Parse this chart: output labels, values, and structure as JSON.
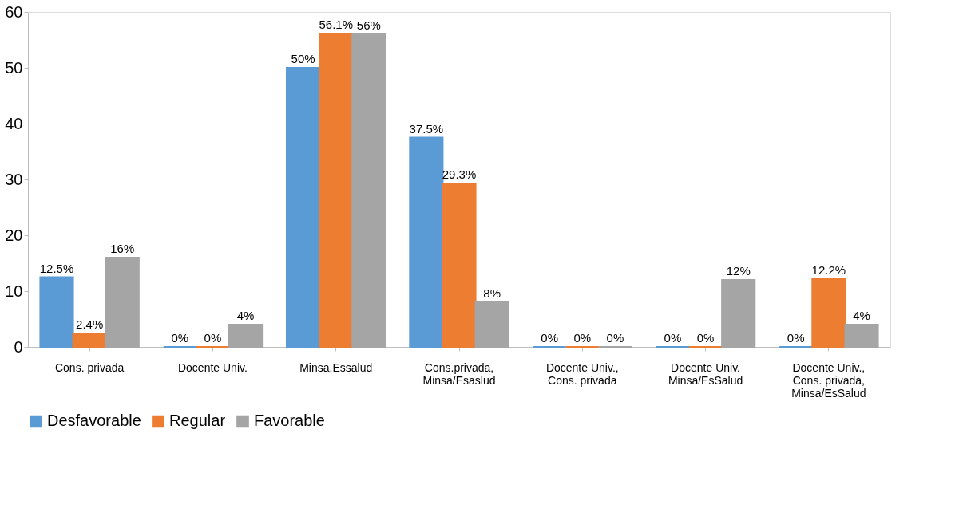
{
  "chart_data": {
    "type": "bar",
    "categories": [
      "Cons. privada",
      "Docente Univ.",
      "Minsa,Essalud",
      "Cons.privada,\nMinsa/Esaslud",
      "Docente Univ.,\nCons. privada",
      "Docente Univ.\nMinsa/EsSalud",
      "Docente Univ.,\nCons. privada,\nMinsa/EsSalud"
    ],
    "series": [
      {
        "name": "Desfavorable",
        "color": "#5b9bd5",
        "values": [
          12.5,
          0,
          50,
          37.5,
          0,
          0,
          0
        ],
        "value_labels": [
          "12.5%",
          "0%",
          "50%",
          "37.5%",
          "0%",
          "0%",
          "0%"
        ]
      },
      {
        "name": "Regular",
        "color": "#ed7d31",
        "values": [
          2.4,
          0,
          56.1,
          29.3,
          0,
          0,
          12.2
        ],
        "value_labels": [
          "2.4%",
          "0%",
          "56.1%",
          "29.3%",
          "0%",
          "0%",
          "12.2%"
        ]
      },
      {
        "name": "Favorable",
        "color": "#a5a5a5",
        "values": [
          16,
          4,
          56,
          8,
          0,
          12,
          4
        ],
        "value_labels": [
          "16%",
          "4%",
          "56%",
          "8%",
          "0%",
          "12%",
          "4%"
        ]
      }
    ],
    "ylim": [
      0,
      60
    ],
    "yticks": [
      0,
      10,
      20,
      30,
      40,
      50,
      60
    ],
    "grid": false,
    "legend": "bottom"
  }
}
